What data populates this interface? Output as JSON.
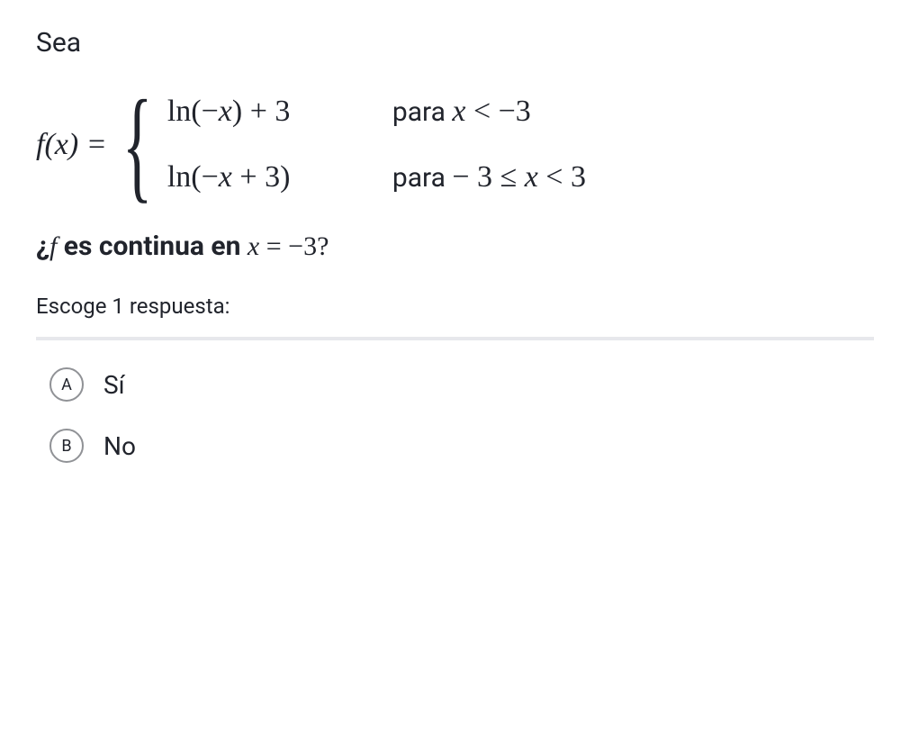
{
  "intro": "Sea",
  "equation": {
    "lhs": "f(x) =",
    "piece1": {
      "expr": "ln(−x) + 3",
      "cond_prefix": "para ",
      "cond": "x < −3"
    },
    "piece2": {
      "expr": "ln(−x + 3)",
      "cond_prefix": "para ",
      "cond": "− 3 ≤ x < 3"
    }
  },
  "question": {
    "prefix": "¿",
    "f": "f",
    "mid": " es continua en ",
    "x": "x",
    "eq": " = −3?",
    "full_suffix": "?"
  },
  "instruction": "Escoge 1 respuesta:",
  "choices": [
    {
      "letter": "A",
      "label": "Sí"
    },
    {
      "letter": "B",
      "label": "No"
    }
  ],
  "colors": {
    "text": "#21242c",
    "divider": "#e7e8ec",
    "circle_border": "#909296",
    "background": "#ffffff"
  },
  "typography": {
    "body_fontsize": 30,
    "instruction_fontsize": 24,
    "choice_fontsize": 28,
    "question_fontweight": 700
  }
}
